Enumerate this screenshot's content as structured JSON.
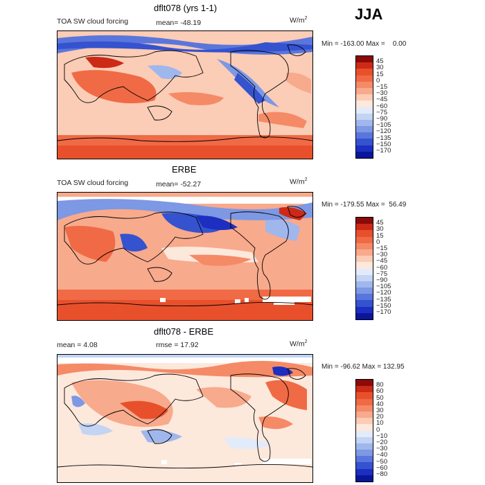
{
  "season": "JJA",
  "panels": [
    {
      "title": "dflt078 (yrs 1-1)",
      "field": "TOA SW cloud forcing",
      "stat": "mean= -48.19",
      "units": "W/m",
      "units_sup": "2",
      "minmax": "Min = -163.00 Max =    0.00",
      "colorbar": {
        "colors": [
          "#8b0a0a",
          "#cc2a16",
          "#e8502c",
          "#f06a45",
          "#f58a66",
          "#f8aa8c",
          "#fbccb6",
          "#fde8dc",
          "#e2ebfa",
          "#c3d4f4",
          "#9fb7ec",
          "#7d98e4",
          "#5a76dc",
          "#3552cf",
          "#1c2fc0",
          "#0a1599"
        ],
        "labels": [
          "45",
          "30",
          "15",
          "0",
          "−15",
          "−30",
          "−45",
          "−60",
          "−75",
          "−90",
          "−105",
          "−120",
          "−135",
          "−150",
          "−170"
        ]
      }
    },
    {
      "title": "ERBE",
      "field": "TOA SW cloud forcing",
      "stat": "mean= -52.27",
      "units": "W/m",
      "units_sup": "2",
      "minmax": "Min = -179.55 Max =  56.49",
      "colorbar": {
        "colors": [
          "#8b0a0a",
          "#cc2a16",
          "#e8502c",
          "#f06a45",
          "#f58a66",
          "#f8aa8c",
          "#fbccb6",
          "#fde8dc",
          "#e2ebfa",
          "#c3d4f4",
          "#9fb7ec",
          "#7d98e4",
          "#5a76dc",
          "#3552cf",
          "#1c2fc0",
          "#0a1599"
        ],
        "labels": [
          "45",
          "30",
          "15",
          "0",
          "−15",
          "−30",
          "−45",
          "−60",
          "−75",
          "−90",
          "−105",
          "−120",
          "−135",
          "−150",
          "−170"
        ]
      }
    },
    {
      "title": "dflt078 - ERBE",
      "stat_left": "mean =    4.08",
      "stat_right": "rmse =   17.92",
      "units": "W/m",
      "units_sup": "2",
      "minmax": "Min = -96.62 Max = 132.95",
      "colorbar": {
        "colors": [
          "#8b0a0a",
          "#cc2a16",
          "#e8502c",
          "#f06a45",
          "#f58a66",
          "#f8aa8c",
          "#fbccb6",
          "#fde8dc",
          "#e2ebfa",
          "#c3d4f4",
          "#9fb7ec",
          "#7d98e4",
          "#5a76dc",
          "#3552cf",
          "#1c2fc0",
          "#0a1599"
        ],
        "labels": [
          "80",
          "60",
          "50",
          "40",
          "30",
          "20",
          "10",
          "0",
          "−10",
          "−20",
          "−30",
          "−40",
          "−50",
          "−60",
          "−80"
        ]
      }
    }
  ]
}
